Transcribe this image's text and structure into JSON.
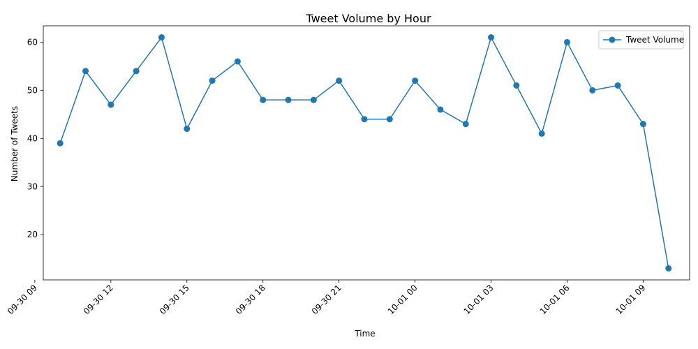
{
  "chart_data": {
    "type": "line",
    "title": "Tweet Volume by Hour",
    "xlabel": "Time",
    "ylabel": "Number of Tweets",
    "x_range": [
      "2023-09-30 09:20",
      "2023-10-01 10:50"
    ],
    "ylim": [
      10.6,
      63.4
    ],
    "x_ticks": [
      {
        "time": "2023-09-30 09:00",
        "label": "09-30 09"
      },
      {
        "time": "2023-09-30 12:00",
        "label": "09-30 12"
      },
      {
        "time": "2023-09-30 15:00",
        "label": "09-30 15"
      },
      {
        "time": "2023-09-30 18:00",
        "label": "09-30 18"
      },
      {
        "time": "2023-09-30 21:00",
        "label": "09-30 21"
      },
      {
        "time": "2023-10-01 00:00",
        "label": "10-01 00"
      },
      {
        "time": "2023-10-01 03:00",
        "label": "10-01 03"
      },
      {
        "time": "2023-10-01 06:00",
        "label": "10-01 06"
      },
      {
        "time": "2023-10-01 09:00",
        "label": "10-01 09"
      }
    ],
    "y_ticks": [
      20,
      30,
      40,
      50,
      60
    ],
    "legend": {
      "position": "upper-right",
      "entries": [
        "Tweet Volume"
      ]
    },
    "grid": false,
    "series": [
      {
        "name": "Tweet Volume",
        "color": "#1f77b4",
        "marker": "circle",
        "x": [
          "2023-09-30 10:00",
          "2023-09-30 11:00",
          "2023-09-30 12:00",
          "2023-09-30 13:00",
          "2023-09-30 14:00",
          "2023-09-30 15:00",
          "2023-09-30 16:00",
          "2023-09-30 17:00",
          "2023-09-30 18:00",
          "2023-09-30 19:00",
          "2023-09-30 20:00",
          "2023-09-30 21:00",
          "2023-09-30 22:00",
          "2023-09-30 23:00",
          "2023-10-01 00:00",
          "2023-10-01 01:00",
          "2023-10-01 02:00",
          "2023-10-01 03:00",
          "2023-10-01 04:00",
          "2023-10-01 05:00",
          "2023-10-01 06:00",
          "2023-10-01 07:00",
          "2023-10-01 08:00",
          "2023-10-01 09:00",
          "2023-10-01 10:00"
        ],
        "y": [
          39,
          54,
          47,
          54,
          61,
          42,
          52,
          56,
          48,
          48,
          48,
          52,
          44,
          44,
          52,
          46,
          43,
          61,
          51,
          41,
          60,
          50,
          51,
          43,
          13
        ]
      }
    ]
  }
}
